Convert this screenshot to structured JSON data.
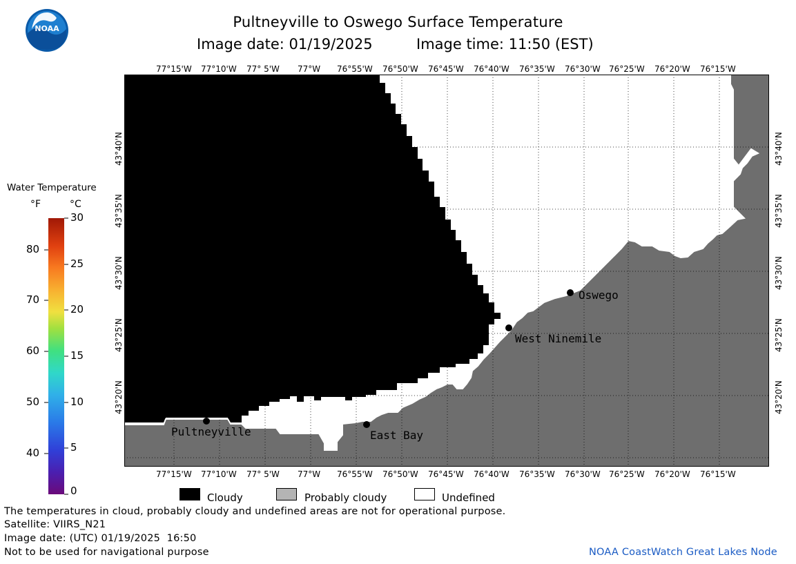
{
  "header": {
    "title": "Pultneyville to Oswego Surface Temperature",
    "subtitle_date": "Image date: 01/19/2025",
    "subtitle_time": "Image time: 11:50 (EST)"
  },
  "logo": {
    "text": "NOAA"
  },
  "map": {
    "lon_labels": [
      "77°15'W",
      "77°10'W",
      "77° 5'W",
      "77°W",
      "76°55'W",
      "76°50'W",
      "76°45'W",
      "76°40'W",
      "76°35'W",
      "76°30'W",
      "76°25'W",
      "76°20'W",
      "76°15'W"
    ],
    "lat_labels": [
      "43°40'N",
      "43°35'N",
      "43°30'N",
      "43°25'N",
      "43°20'N"
    ],
    "places": {
      "oswego": "Oswego",
      "west_ninemile": "West Ninemile",
      "pultneyville": "Pultneyville",
      "east_bay": "East Bay"
    },
    "colors": {
      "cloudy": "#000000",
      "land": "#6e6e6e",
      "undefined": "#ffffff",
      "grid": "#000000"
    }
  },
  "colorbar": {
    "title": "Water Temperature",
    "unit_f": "°F",
    "unit_c": "°C",
    "f_labels": [
      "80",
      "70",
      "60",
      "50",
      "40"
    ],
    "c_labels": [
      "30",
      "25",
      "20",
      "15",
      "10",
      "5",
      "0"
    ]
  },
  "legend": {
    "cloudy": "Cloudy",
    "probably_cloudy": "Probably cloudy",
    "undefined": "Undefined"
  },
  "footer": {
    "note": "The temperatures in cloud, probably cloudy and undefined areas are not for operational purpose.",
    "satellite": "Satellite: VIIRS_N21",
    "utc": "Image date: (UTC) 01/19/2025  16:50",
    "nav": "Not to be used for navigational purpose",
    "credit": "NOAA CoastWatch Great Lakes Node"
  }
}
